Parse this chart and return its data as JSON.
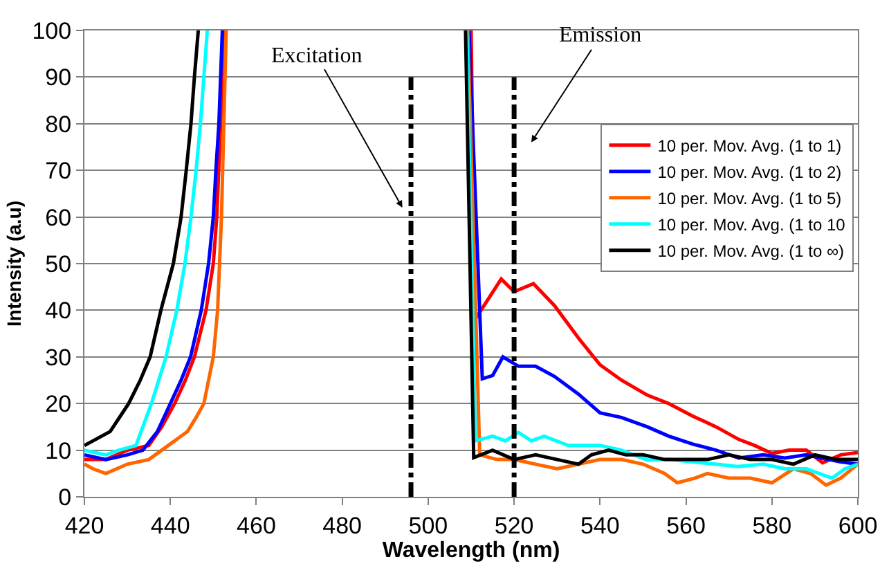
{
  "chart_data": {
    "type": "line",
    "xlabel": "Wavelength (nm)",
    "ylabel": "Intensity (a.u)",
    "xlim": [
      420,
      600
    ],
    "xticks": [
      420,
      440,
      460,
      480,
      500,
      520,
      540,
      560,
      580,
      600
    ],
    "ylim": [
      0,
      100
    ],
    "yticks": [
      0,
      10,
      20,
      30,
      40,
      50,
      60,
      70,
      80,
      90,
      100
    ],
    "grid": "y",
    "legend": "top right",
    "marker": "none",
    "line_style": "solid",
    "series": [
      {
        "name": "10 per. Mov. Avg. (1 to 1)",
        "color": "#ff0000",
        "x": [
          420,
          425,
          430,
          435,
          438,
          441,
          443.5,
          445.6,
          448.3,
          450,
          450.8,
          451.7,
          452.7,
          480,
          510,
          510.9,
          513,
          517,
          520,
          524.5,
          529.4,
          535,
          540,
          545,
          551,
          556,
          561.6,
          567,
          572.3,
          576,
          580,
          584,
          588,
          591.8,
          596,
          600
        ],
        "values": [
          8,
          8,
          10,
          11,
          15,
          20,
          25,
          30,
          40,
          50,
          60,
          80,
          100,
          null,
          100,
          38,
          41,
          46.7,
          44,
          45.7,
          41,
          34,
          28.3,
          25,
          21.8,
          20,
          17.3,
          15,
          12.3,
          11,
          9.3,
          10,
          10,
          7.3,
          9,
          9.5
        ]
      },
      {
        "name": "10 per. Mov. Avg. (1 to 2)",
        "color": "#0000ff",
        "x": [
          420,
          425,
          430,
          433.6,
          437,
          440,
          442.5,
          444.7,
          447.2,
          448.9,
          450,
          450.6,
          451.3,
          452.1,
          480,
          509.5,
          512.6,
          515,
          517.4,
          521,
          525,
          529.4,
          535,
          540,
          545,
          551,
          556,
          561.6,
          567,
          572.3,
          578,
          583,
          588,
          591.6,
          596,
          600
        ],
        "values": [
          9,
          8,
          9,
          10,
          14,
          20,
          25,
          30,
          40,
          50,
          60,
          70,
          80,
          100,
          null,
          100,
          25.3,
          26,
          30,
          28,
          28,
          25.8,
          22,
          18,
          17,
          15,
          13,
          11.3,
          10,
          8.3,
          9,
          8.3,
          9,
          8.3,
          7.5,
          7
        ]
      },
      {
        "name": "10 per. Mov. Avg. (1 to 5)",
        "color": "#ff6600",
        "x": [
          420,
          422,
          425,
          430,
          435,
          438,
          441,
          444,
          446,
          447.8,
          450,
          451,
          451.9,
          453,
          480,
          509.2,
          512,
          516,
          520,
          525,
          530,
          535,
          540,
          545,
          550,
          555,
          558,
          562,
          565,
          570,
          575,
          580,
          585,
          589,
          592.6,
          596,
          600
        ],
        "values": [
          7,
          6,
          5,
          7,
          8,
          10,
          12,
          14,
          17,
          20,
          30,
          40,
          60,
          100,
          null,
          100,
          9,
          8,
          8,
          7,
          6,
          7,
          8,
          8,
          7,
          5,
          3,
          4,
          5,
          4,
          4,
          3,
          6,
          5,
          2.5,
          4,
          7
        ]
      },
      {
        "name": "10 per. Mov. Avg. (1 to 10",
        "color": "#00ffff",
        "x": [
          420,
          425,
          428,
          432,
          435.6,
          439,
          441.5,
          443.4,
          444.8,
          446,
          447,
          447.8,
          448.6,
          480,
          509,
          511,
          515,
          518,
          521,
          524,
          527,
          532.6,
          540,
          545,
          551,
          556,
          561.6,
          568,
          572,
          578,
          583,
          588,
          594,
          597,
          600
        ],
        "values": [
          10,
          9,
          10,
          11,
          20,
          30,
          40,
          50,
          60,
          70,
          80,
          90,
          100,
          null,
          100,
          12,
          13,
          12,
          13.8,
          12,
          13,
          11,
          11,
          10,
          7.9,
          8,
          7.5,
          6.9,
          6.5,
          7,
          6,
          6,
          4,
          6,
          7
        ]
      },
      {
        "name": "10 per. Mov. Avg. (1 to ∞)",
        "color": "#000000",
        "x": [
          420,
          422,
          426,
          430.3,
          433,
          435.3,
          437.8,
          440.7,
          442.5,
          443.7,
          444.8,
          445.6,
          446.5,
          480,
          508.7,
          510.6,
          515,
          520,
          525,
          530,
          535,
          538,
          542,
          546,
          550,
          555,
          560,
          565,
          570,
          575,
          580,
          585,
          590,
          595,
          600
        ],
        "values": [
          11,
          12,
          14,
          20,
          25,
          30,
          40,
          50,
          60,
          70,
          80,
          90,
          100,
          null,
          100,
          8.4,
          10,
          8,
          9,
          8,
          7,
          9,
          10,
          9,
          9,
          8,
          8,
          8,
          9,
          8,
          8,
          7,
          9,
          8,
          8
        ]
      }
    ],
    "ref_lines": [
      {
        "axis": "x",
        "value": 496,
        "label": "Excitation",
        "color": "#000000",
        "line_style": "dashed"
      },
      {
        "axis": "x",
        "value": 520,
        "label": "Emission",
        "color": "#000000",
        "line_style": "dashed"
      }
    ]
  }
}
